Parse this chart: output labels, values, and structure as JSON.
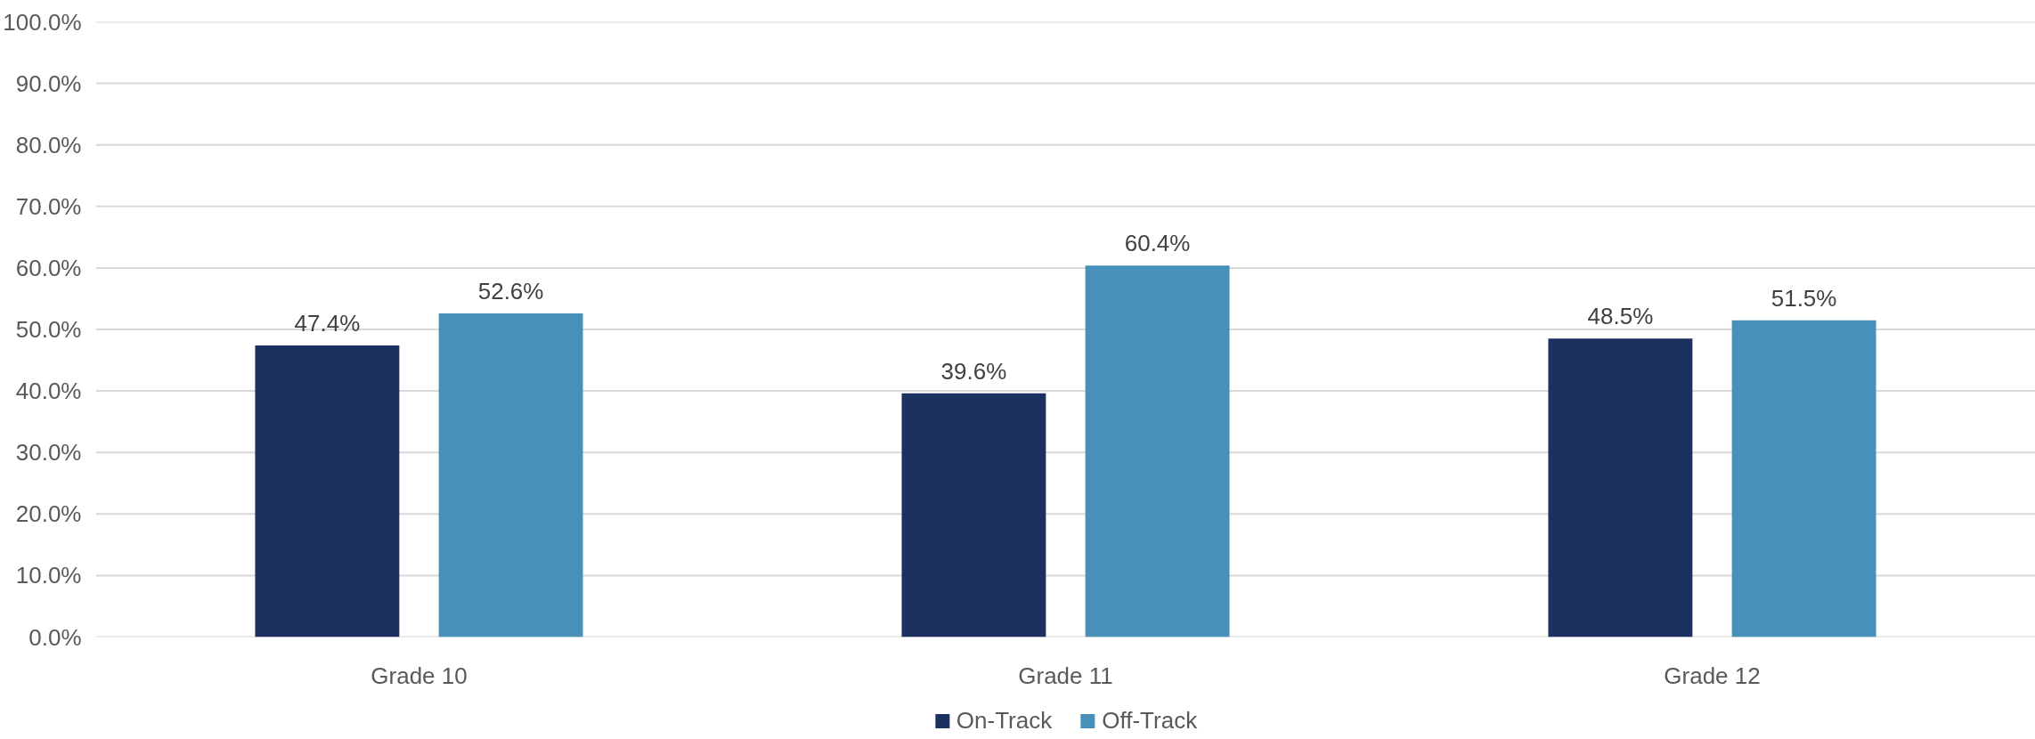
{
  "chart_data": {
    "type": "bar",
    "categories": [
      "Grade 10",
      "Grade 11",
      "Grade 12"
    ],
    "series": [
      {
        "name": "On-Track",
        "color": "#1c3160",
        "values": [
          47.4,
          39.6,
          48.5
        ],
        "value_labels": [
          "47.4%",
          "39.6%",
          "48.5%"
        ]
      },
      {
        "name": "Off-Track",
        "color": "#4690b9",
        "values": [
          52.6,
          60.4,
          51.5
        ],
        "value_labels": [
          "52.6%",
          "60.4%",
          "51.5%"
        ]
      }
    ],
    "ylim": [
      0,
      100
    ],
    "yticks": [
      {
        "value": 0,
        "label": "0.0%"
      },
      {
        "value": 10,
        "label": "10.0%"
      },
      {
        "value": 20,
        "label": "20.0%"
      },
      {
        "value": 30,
        "label": "30.0%"
      },
      {
        "value": 40,
        "label": "40.0%"
      },
      {
        "value": 50,
        "label": "50.0%"
      },
      {
        "value": 60,
        "label": "60.0%"
      },
      {
        "value": 70,
        "label": "70.0%"
      },
      {
        "value": 80,
        "label": "80.0%"
      },
      {
        "value": 90,
        "label": "90.0%"
      },
      {
        "value": 100,
        "label": "100.0%"
      }
    ],
    "grid": "y",
    "legend": "bottom"
  }
}
